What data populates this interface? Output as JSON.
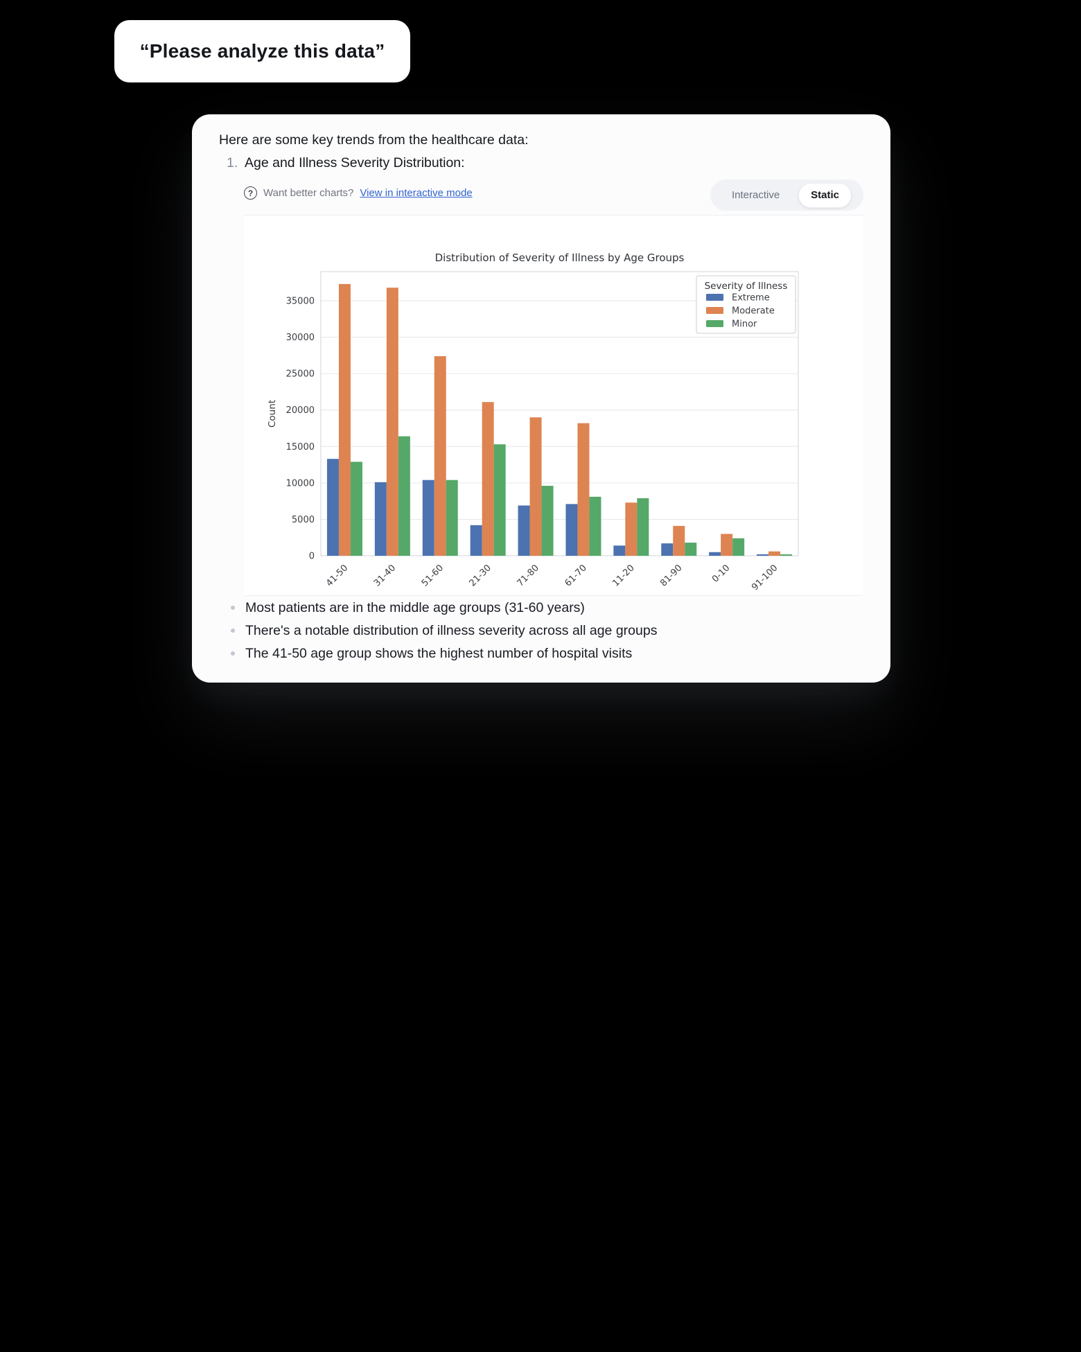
{
  "user_message": "“Please analyze this data”",
  "card": {
    "intro": "Here are some key trends from the healthcare data:",
    "list_number": "1.",
    "list_item": "Age and Illness Severity Distribution:",
    "hint": {
      "icon": "question-mark-circle",
      "text": "Want better charts?",
      "link": "View in interactive mode"
    },
    "toggle": {
      "options": [
        "Interactive",
        "Static"
      ],
      "selected": "Static"
    },
    "bullets": [
      "Most patients are in the middle age groups (31-60 years)",
      "There's a notable distribution of illness severity across all age groups",
      "The 41-50 age group shows the highest number of hospital visits"
    ]
  },
  "chart_data": {
    "type": "bar",
    "title": "Distribution of Severity of Illness by Age Groups",
    "xlabel": "",
    "ylabel": "Count",
    "categories": [
      "41-50",
      "31-40",
      "51-60",
      "21-30",
      "71-80",
      "61-70",
      "11-20",
      "81-90",
      "0-10",
      "91-100"
    ],
    "series": [
      {
        "name": "Extreme",
        "color": "#4C72B0",
        "values": [
          13300,
          10100,
          10400,
          4200,
          6900,
          7100,
          1400,
          1700,
          500,
          200
        ]
      },
      {
        "name": "Moderate",
        "color": "#DD8452",
        "values": [
          37300,
          36800,
          27400,
          21100,
          19000,
          18200,
          7300,
          4100,
          3000,
          600
        ]
      },
      {
        "name": "Minor",
        "color": "#55A868",
        "values": [
          12900,
          16400,
          10400,
          15300,
          9600,
          8100,
          7900,
          1800,
          2400,
          200
        ]
      }
    ],
    "legend_title": "Severity of Illness",
    "legend_position": "upper right",
    "ylim": [
      0,
      39000
    ],
    "yticks": [
      0,
      5000,
      10000,
      15000,
      20000,
      25000,
      30000,
      35000
    ],
    "grid": true,
    "x_tick_rotation": 45
  },
  "colors": {
    "link": "#3164cf",
    "grid_line": "#e4e6ea",
    "spine": "#d0d3d8",
    "chart_text": "#3a3d42"
  }
}
